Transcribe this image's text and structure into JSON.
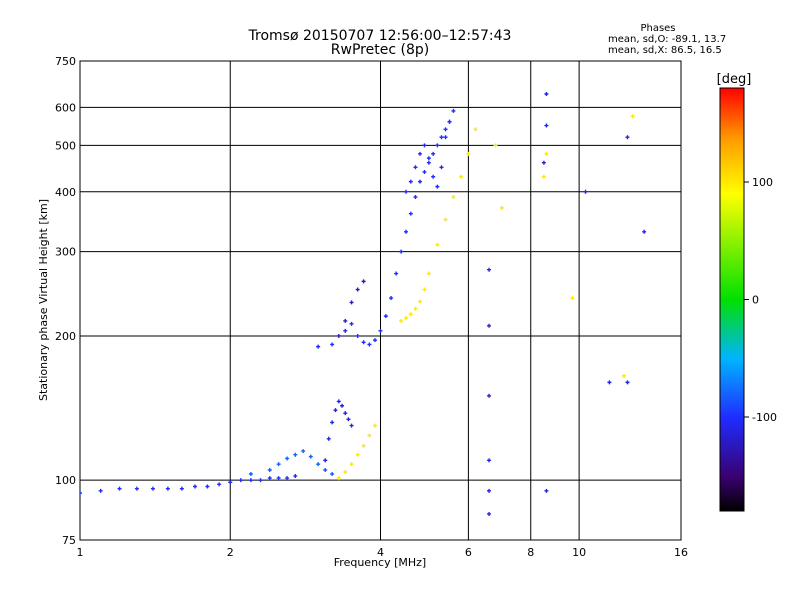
{
  "title": "Tromsø 20150707 12:56:00–12:57:43",
  "subtitle": "RwPretec (8p)",
  "stats": {
    "heading": "Phases",
    "o_line": "mean, sd,O: -89.1, 13.7",
    "x_line": "mean, sd,X:  86.5, 16.5"
  },
  "colorbar": {
    "title": "[deg]",
    "range": [
      -180,
      180
    ],
    "tick_labels": [
      "100",
      "0",
      "-100"
    ]
  },
  "chart_data": {
    "type": "scatter",
    "xlabel": "Frequency [MHz]",
    "ylabel": "Stationary phase Virtual Height [km]",
    "xscale": "log",
    "yscale": "log",
    "xlim": [
      1,
      16
    ],
    "ylim": [
      75,
      750
    ],
    "xticks": [
      1,
      2,
      4,
      6,
      8,
      10,
      16
    ],
    "yticks": [
      75,
      100,
      200,
      300,
      400,
      500,
      600,
      750
    ],
    "grid": true,
    "point_style": "small cross",
    "color_mapping": "phase (deg): -180 black/purple, -100 blue, 0 green, 100 yellow, 180 red",
    "traces": [
      {
        "name": "",
        "phase": -100,
        "x": [
          1.0,
          1.1,
          1.2,
          1.3,
          1.4,
          1.5,
          1.6,
          1.7,
          1.8,
          1.9,
          2.0,
          2.1,
          2.2,
          2.3,
          2.4,
          2.5,
          2.6,
          2.7
        ],
        "y": [
          94,
          95,
          96,
          96,
          96,
          96,
          96,
          97,
          97,
          98,
          99,
          100,
          100,
          100,
          101,
          101,
          101,
          102
        ]
      },
      {
        "name": "",
        "phase": -80,
        "x": [
          2.2,
          2.4,
          2.5,
          2.6,
          2.7,
          2.8,
          2.9,
          3.0,
          3.1,
          3.2
        ],
        "y": [
          103,
          105,
          108,
          111,
          113,
          115,
          112,
          108,
          105,
          103
        ]
      },
      {
        "name": "",
        "phase": -110,
        "x": [
          3.1,
          3.15,
          3.2,
          3.25,
          3.3,
          3.35,
          3.4,
          3.45,
          3.5
        ],
        "y": [
          110,
          122,
          132,
          140,
          146,
          143,
          138,
          134,
          130
        ]
      },
      {
        "name": "",
        "phase": 100,
        "x": [
          3.3,
          3.4,
          3.5,
          3.6,
          3.7,
          3.8,
          3.9
        ],
        "y": [
          101,
          104,
          108,
          113,
          118,
          124,
          130
        ]
      },
      {
        "name": "",
        "phase": -100,
        "x": [
          3.0,
          3.2,
          3.4,
          3.5,
          3.6,
          3.7,
          3.8,
          3.9,
          4.0,
          4.1,
          4.2,
          4.3,
          4.4,
          4.5,
          4.6,
          4.7,
          4.8,
          4.9,
          5.0,
          5.1,
          5.2,
          5.3,
          5.4,
          5.5,
          5.6
        ],
        "y": [
          190,
          192,
          205,
          212,
          200,
          194,
          192,
          196,
          205,
          220,
          240,
          270,
          300,
          330,
          360,
          390,
          420,
          440,
          460,
          480,
          500,
          520,
          540,
          560,
          590
        ]
      },
      {
        "name": "",
        "phase": -120,
        "x": [
          3.3,
          3.4,
          3.5,
          3.6,
          3.7
        ],
        "y": [
          200,
          215,
          235,
          250,
          260
        ]
      },
      {
        "name": "",
        "phase": -100,
        "x": [
          4.5,
          4.6,
          4.7,
          4.8,
          4.9,
          5.0,
          5.1,
          5.2,
          5.3,
          5.4,
          5.5
        ],
        "y": [
          400,
          420,
          450,
          480,
          500,
          470,
          430,
          410,
          450,
          520,
          560
        ]
      },
      {
        "name": "",
        "phase": 100,
        "x": [
          4.4,
          4.5,
          4.6,
          4.7,
          4.8,
          4.9,
          5.0,
          5.2,
          5.4,
          5.6,
          5.8,
          6.0,
          6.2
        ],
        "y": [
          215,
          218,
          222,
          228,
          236,
          250,
          270,
          310,
          350,
          390,
          430,
          480,
          540
        ]
      },
      {
        "name": "",
        "phase": -110,
        "x": [
          6.6,
          6.6,
          6.6,
          6.6,
          6.6,
          6.6,
          8.5,
          8.6,
          8.6,
          8.6,
          10.3,
          11.5,
          12.5,
          12.5,
          13.5
        ],
        "y": [
          85,
          95,
          110,
          150,
          210,
          275,
          460,
          550,
          640,
          95,
          400,
          160,
          520,
          160,
          330
        ]
      },
      {
        "name": "",
        "phase": 100,
        "x": [
          6.8,
          7.0,
          8.5,
          8.6,
          9.7,
          12.3,
          12.8
        ],
        "y": [
          500,
          370,
          430,
          480,
          240,
          165,
          575
        ]
      }
    ]
  }
}
